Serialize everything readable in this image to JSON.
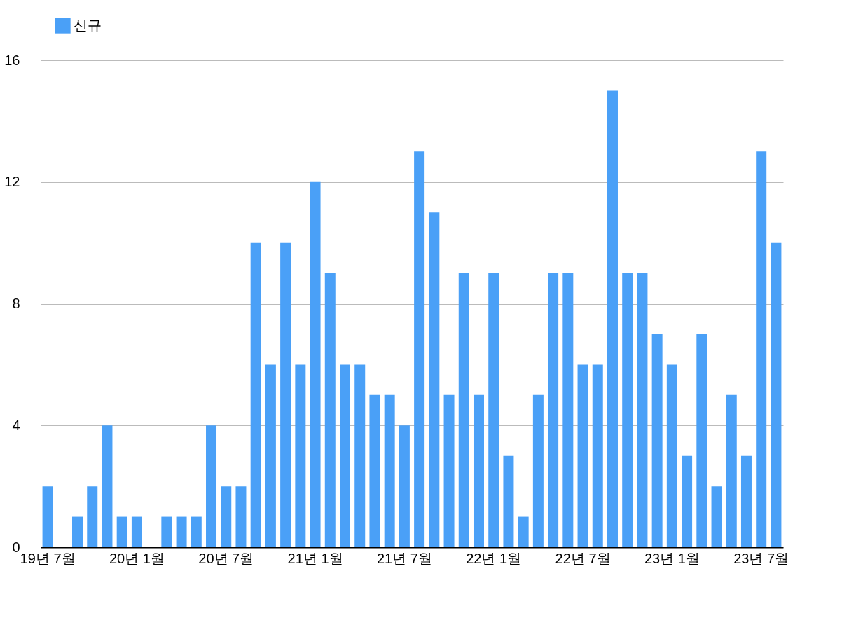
{
  "chart_data": {
    "type": "bar",
    "categories": [
      "19년 7월",
      null,
      null,
      null,
      null,
      null,
      "20년 1월",
      null,
      null,
      null,
      null,
      null,
      "20년 7월",
      null,
      null,
      null,
      null,
      null,
      "21년 1월",
      null,
      null,
      null,
      null,
      null,
      "21년 7월",
      null,
      null,
      null,
      null,
      null,
      "22년 1월",
      null,
      null,
      null,
      null,
      null,
      "22년 7월",
      null,
      null,
      null,
      null,
      null,
      "23년 1월",
      null,
      null,
      null,
      null,
      null,
      "23년 7월",
      null
    ],
    "series": [
      {
        "name": "신규",
        "color": "#4aa0f7",
        "values": [
          2,
          0,
          1,
          2,
          4,
          1,
          1,
          0,
          1,
          1,
          1,
          4,
          2,
          2,
          10,
          6,
          10,
          6,
          12,
          9,
          6,
          6,
          5,
          5,
          4,
          13,
          11,
          5,
          9,
          5,
          9,
          3,
          1,
          5,
          9,
          9,
          6,
          6,
          15,
          9,
          9,
          7,
          6,
          3,
          7,
          2,
          5,
          3,
          13,
          10
        ]
      }
    ],
    "ylim": [
      0,
      16
    ],
    "yticks": [
      0,
      4,
      8,
      12,
      16
    ],
    "grid": "y",
    "legend": "top"
  }
}
